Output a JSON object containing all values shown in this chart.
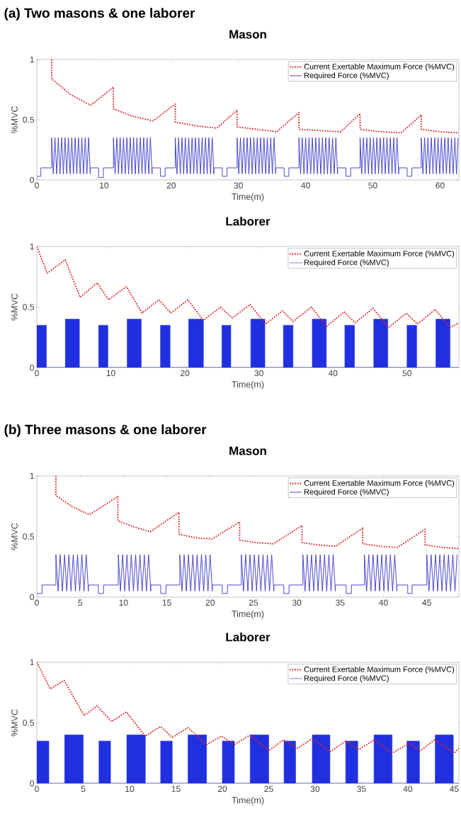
{
  "chart_data": [
    {
      "type": "line",
      "title": "Mason",
      "xlabel": "Time(m)",
      "ylabel": "%MVC",
      "annotations": [
        "(a) Two masons & one laborer"
      ],
      "xlim": [
        0,
        62.8
      ],
      "ylim": [
        0,
        1
      ],
      "xticks": [
        0,
        10,
        20,
        30,
        40,
        50,
        60
      ],
      "yticks": [
        0,
        0.5,
        1
      ],
      "legend": "top right",
      "series": [
        {
          "name": "Current Exertable Maximum Force (%MVC)",
          "color": "#e02020",
          "line_style": "dotted",
          "x": [
            2.2,
            2.2,
            5.0,
            8.0,
            11.4,
            11.4,
            14.2,
            17.3,
            20.6,
            20.6,
            23.6,
            26.8,
            29.8,
            29.8,
            32.7,
            35.7,
            39.0,
            39.0,
            42.1,
            45.2,
            48.1,
            48.1,
            51.1,
            54.2,
            57.2,
            57.2,
            60.0,
            62.8
          ],
          "values": [
            1,
            0.84,
            0.71,
            0.62,
            0.77,
            0.59,
            0.53,
            0.49,
            0.63,
            0.48,
            0.45,
            0.43,
            0.58,
            0.44,
            0.42,
            0.4,
            0.56,
            0.42,
            0.41,
            0.4,
            0.55,
            0.42,
            0.4,
            0.39,
            0.54,
            0.42,
            0.4,
            0.39
          ]
        },
        {
          "name": "Required Force (%MVC)",
          "color": "#3535cc",
          "line_style": "solid",
          "x": [
            0,
            0.6,
            0.6,
            2.2,
            2.2,
            2.45,
            2.7,
            2.95,
            3.2,
            3.45,
            3.7,
            3.95,
            4.2,
            4.45,
            4.7,
            4.95,
            5.2,
            5.45,
            5.7,
            5.95,
            6.2,
            6.45,
            6.7,
            6.95,
            7.2,
            7.45,
            7.7,
            7.95,
            7.95,
            9.2,
            9.2,
            9.9,
            9.9,
            11.4,
            11.4,
            11.65,
            11.9,
            12.15,
            12.4,
            12.65,
            12.9,
            13.15,
            13.4,
            13.65,
            13.9,
            14.15,
            14.4,
            14.65,
            14.9,
            15.15,
            15.4,
            15.65,
            15.9,
            16.15,
            16.4,
            16.65,
            16.9,
            17.15,
            17.15,
            18.4,
            18.4,
            19.1,
            19.1,
            20.6,
            20.6,
            20.85,
            21.1,
            21.35,
            21.6,
            21.85,
            22.1,
            22.35,
            22.6,
            22.85,
            23.1,
            23.35,
            23.6,
            23.85,
            24.1,
            24.35,
            24.6,
            24.85,
            25.1,
            25.35,
            25.6,
            25.85,
            26.1,
            26.35,
            26.35,
            27.6,
            27.6,
            28.3,
            28.3,
            29.8,
            29.8,
            30.05,
            30.3,
            30.55,
            30.8,
            31.05,
            31.3,
            31.55,
            31.8,
            32.05,
            32.3,
            32.55,
            32.8,
            33.05,
            33.3,
            33.55,
            33.8,
            34.05,
            34.3,
            34.55,
            34.8,
            35.05,
            35.3,
            35.55,
            35.55,
            36.8,
            36.8,
            37.5,
            37.5,
            39.0,
            39.0,
            39.25,
            39.5,
            39.75,
            40.0,
            40.25,
            40.5,
            40.75,
            41.0,
            41.25,
            41.5,
            41.75,
            42.0,
            42.25,
            42.5,
            42.75,
            43.0,
            43.25,
            43.5,
            43.75,
            44.0,
            44.25,
            44.5,
            44.75,
            44.75,
            46.0,
            46.0,
            46.7,
            46.7,
            48.1,
            48.1,
            48.35,
            48.6,
            48.85,
            49.1,
            49.35,
            49.6,
            49.85,
            50.1,
            50.35,
            50.6,
            50.85,
            51.1,
            51.35,
            51.6,
            51.85,
            52.1,
            52.35,
            52.6,
            52.85,
            53.1,
            53.35,
            53.6,
            53.85,
            53.85,
            55.1,
            55.1,
            55.8,
            55.8,
            57.2,
            57.2,
            57.45,
            57.7,
            57.95,
            58.2,
            58.45,
            58.7,
            58.95,
            59.2,
            59.45,
            59.7,
            59.95,
            60.2,
            60.45,
            60.7,
            60.95,
            61.2,
            61.45,
            61.7,
            61.95,
            62.2,
            62.45,
            62.7
          ],
          "values": [
            0.03,
            0.03,
            0.1,
            0.1,
            0.35,
            0.05,
            0.35,
            0.05,
            0.35,
            0.05,
            0.35,
            0.05,
            0.35,
            0.05,
            0.35,
            0.05,
            0.35,
            0.05,
            0.35,
            0.05,
            0.35,
            0.05,
            0.35,
            0.05,
            0.35,
            0.05,
            0.35,
            0.05,
            0.1,
            0.1,
            0.02,
            0.02,
            0.1,
            0.1,
            0.35,
            0.05,
            0.35,
            0.05,
            0.35,
            0.05,
            0.35,
            0.05,
            0.35,
            0.05,
            0.35,
            0.05,
            0.35,
            0.05,
            0.35,
            0.05,
            0.35,
            0.05,
            0.35,
            0.05,
            0.35,
            0.05,
            0.35,
            0.05,
            0.1,
            0.1,
            0.03,
            0.03,
            0.1,
            0.1,
            0.35,
            0.05,
            0.35,
            0.05,
            0.35,
            0.05,
            0.35,
            0.05,
            0.35,
            0.05,
            0.35,
            0.05,
            0.35,
            0.05,
            0.35,
            0.05,
            0.35,
            0.05,
            0.35,
            0.05,
            0.35,
            0.05,
            0.35,
            0.05,
            0.1,
            0.1,
            0.03,
            0.03,
            0.1,
            0.1,
            0.35,
            0.05,
            0.35,
            0.05,
            0.35,
            0.05,
            0.35,
            0.05,
            0.35,
            0.05,
            0.35,
            0.05,
            0.35,
            0.05,
            0.35,
            0.05,
            0.35,
            0.05,
            0.35,
            0.05,
            0.35,
            0.05,
            0.35,
            0.05,
            0.1,
            0.1,
            0.03,
            0.03,
            0.1,
            0.1,
            0.35,
            0.05,
            0.35,
            0.05,
            0.35,
            0.05,
            0.35,
            0.05,
            0.35,
            0.05,
            0.35,
            0.05,
            0.35,
            0.05,
            0.35,
            0.05,
            0.35,
            0.05,
            0.35,
            0.05,
            0.35,
            0.05,
            0.35,
            0.05,
            0.1,
            0.1,
            0.03,
            0.03,
            0.1,
            0.1,
            0.35,
            0.05,
            0.35,
            0.05,
            0.35,
            0.05,
            0.35,
            0.05,
            0.35,
            0.05,
            0.35,
            0.05,
            0.35,
            0.05,
            0.35,
            0.05,
            0.35,
            0.05,
            0.35,
            0.05,
            0.35,
            0.05,
            0.35,
            0.05,
            0.1,
            0.1,
            0.03,
            0.03,
            0.1,
            0.1,
            0.35,
            0.05,
            0.35,
            0.05,
            0.35,
            0.05,
            0.35,
            0.05,
            0.35,
            0.05,
            0.35,
            0.05,
            0.35,
            0.05,
            0.35,
            0.05,
            0.35,
            0.05,
            0.35,
            0.05,
            0.35,
            0.05,
            0.35
          ]
        }
      ]
    },
    {
      "type": "line",
      "title": "Laborer",
      "xlabel": "Time(m)",
      "ylabel": "%MVC",
      "xlim": [
        0,
        57
      ],
      "ylim": [
        0,
        1
      ],
      "xticks": [
        0,
        10,
        20,
        30,
        40,
        50
      ],
      "yticks": [
        0,
        0.5,
        1
      ],
      "legend": "top right",
      "series": [
        {
          "name": "Current Exertable Maximum Force (%MVC)",
          "color": "#e02020",
          "line_style": "dotted",
          "x": [
            0,
            1.4,
            3.85,
            5.85,
            8.15,
            9.7,
            12.1,
            14.2,
            16.5,
            18.1,
            20.4,
            22.5,
            24.8,
            26.4,
            28.8,
            30.9,
            33.2,
            34.6,
            37.1,
            39.1,
            41.5,
            43.0,
            45.4,
            47.5,
            49.9,
            51.4,
            53.8,
            55.8,
            57.0
          ],
          "values": [
            1,
            0.78,
            0.89,
            0.58,
            0.7,
            0.56,
            0.67,
            0.45,
            0.56,
            0.45,
            0.56,
            0.39,
            0.5,
            0.41,
            0.52,
            0.36,
            0.47,
            0.38,
            0.5,
            0.34,
            0.46,
            0.37,
            0.49,
            0.33,
            0.45,
            0.36,
            0.48,
            0.33,
            0.37
          ]
        },
        {
          "name": "Required Force (%MVC)",
          "color": "#2030e0",
          "type": "area",
          "x": [
            0,
            0,
            1.3,
            1.3,
            3.85,
            3.85,
            5.75,
            5.75,
            8.35,
            8.35,
            9.6,
            9.6,
            12.2,
            12.2,
            14.1,
            14.1,
            16.7,
            16.7,
            18.0,
            18.0,
            20.5,
            20.5,
            22.5,
            22.5,
            25.0,
            25.0,
            26.2,
            26.2,
            28.9,
            28.9,
            30.8,
            30.8,
            33.3,
            33.3,
            34.6,
            34.6,
            37.2,
            37.2,
            39.1,
            39.1,
            41.6,
            41.6,
            42.9,
            42.9,
            45.5,
            45.5,
            47.4,
            47.4,
            50.0,
            50.0,
            51.3,
            51.3,
            53.9,
            53.9,
            55.8,
            55.8,
            57.0
          ],
          "values": [
            0,
            0.35,
            0.35,
            0,
            0,
            0.4,
            0.4,
            0,
            0,
            0.35,
            0.35,
            0,
            0,
            0.4,
            0.4,
            0,
            0,
            0.35,
            0.35,
            0,
            0,
            0.4,
            0.4,
            0,
            0,
            0.35,
            0.35,
            0,
            0,
            0.4,
            0.4,
            0,
            0,
            0.35,
            0.35,
            0,
            0,
            0.4,
            0.4,
            0,
            0,
            0.35,
            0.35,
            0,
            0,
            0.4,
            0.4,
            0,
            0,
            0.35,
            0.35,
            0,
            0,
            0.4,
            0.4,
            0,
            0
          ]
        }
      ]
    },
    {
      "type": "line",
      "title": "Mason",
      "xlabel": "Time(m)",
      "ylabel": "%MVC",
      "annotations": [
        "(b) Three masons & one laborer"
      ],
      "xlim": [
        0,
        48.7
      ],
      "ylim": [
        0,
        1
      ],
      "xticks": [
        0,
        5,
        10,
        15,
        20,
        25,
        30,
        35,
        40,
        45
      ],
      "yticks": [
        0,
        0.5,
        1
      ],
      "legend": "top right",
      "series": [
        {
          "name": "Current Exertable Maximum Force (%MVC)",
          "color": "#e02020",
          "line_style": "dotted",
          "x": [
            2.2,
            2.2,
            4.0,
            6.05,
            9.35,
            9.35,
            11.2,
            13.1,
            16.4,
            16.4,
            18.3,
            20.2,
            23.4,
            23.4,
            25.3,
            27.3,
            30.6,
            30.6,
            32.5,
            34.5,
            37.6,
            37.6,
            39.6,
            41.6,
            44.8,
            44.8,
            46.8,
            48.7
          ],
          "values": [
            1,
            0.84,
            0.75,
            0.68,
            0.83,
            0.63,
            0.58,
            0.54,
            0.7,
            0.52,
            0.49,
            0.48,
            0.62,
            0.47,
            0.45,
            0.44,
            0.59,
            0.45,
            0.43,
            0.42,
            0.57,
            0.44,
            0.42,
            0.41,
            0.56,
            0.43,
            0.41,
            0.4
          ]
        },
        {
          "name": "Required Force (%MVC)",
          "color": "#3535cc",
          "line_style": "solid",
          "x": [
            0,
            0.6,
            0.6,
            2.2,
            2.2,
            2.45,
            2.7,
            2.95,
            3.2,
            3.45,
            3.7,
            3.95,
            4.2,
            4.45,
            4.7,
            4.95,
            5.2,
            5.45,
            5.7,
            5.95,
            5.95,
            7.1,
            7.1,
            7.7,
            7.7,
            9.4,
            9.4,
            9.65,
            9.9,
            10.15,
            10.4,
            10.65,
            10.9,
            11.15,
            11.4,
            11.65,
            11.9,
            12.15,
            12.4,
            12.65,
            12.9,
            13.15,
            13.15,
            14.3,
            14.3,
            14.9,
            14.9,
            16.5,
            16.5,
            16.75,
            17.0,
            17.25,
            17.5,
            17.75,
            18.0,
            18.25,
            18.5,
            18.75,
            19.0,
            19.25,
            19.5,
            19.75,
            20.0,
            20.25,
            20.25,
            21.4,
            21.4,
            22.0,
            22.0,
            23.6,
            23.6,
            23.85,
            24.1,
            24.35,
            24.6,
            24.85,
            25.1,
            25.35,
            25.6,
            25.85,
            26.1,
            26.35,
            26.6,
            26.85,
            27.1,
            27.35,
            27.35,
            28.5,
            28.5,
            29.1,
            29.1,
            30.7,
            30.7,
            30.95,
            31.2,
            31.45,
            31.7,
            31.95,
            32.2,
            32.45,
            32.7,
            32.95,
            33.2,
            33.45,
            33.7,
            33.95,
            34.2,
            34.45,
            34.45,
            35.7,
            35.7,
            36.3,
            36.3,
            37.8,
            37.8,
            38.05,
            38.3,
            38.55,
            38.8,
            39.05,
            39.3,
            39.55,
            39.8,
            40.05,
            40.3,
            40.55,
            40.8,
            41.05,
            41.3,
            41.55,
            41.55,
            42.8,
            42.8,
            43.3,
            43.3,
            45.0,
            45.0,
            45.25,
            45.5,
            45.75,
            46.0,
            46.25,
            46.5,
            46.75,
            47.0,
            47.25,
            47.5,
            47.75,
            48.0,
            48.25,
            48.5
          ],
          "values": [
            0.03,
            0.03,
            0.1,
            0.1,
            0.35,
            0.05,
            0.35,
            0.05,
            0.35,
            0.05,
            0.35,
            0.05,
            0.35,
            0.05,
            0.35,
            0.05,
            0.35,
            0.05,
            0.35,
            0.05,
            0.1,
            0.1,
            0.03,
            0.03,
            0.1,
            0.1,
            0.35,
            0.05,
            0.35,
            0.05,
            0.35,
            0.05,
            0.35,
            0.05,
            0.35,
            0.05,
            0.35,
            0.05,
            0.35,
            0.05,
            0.35,
            0.05,
            0.1,
            0.1,
            0.03,
            0.03,
            0.1,
            0.1,
            0.35,
            0.05,
            0.35,
            0.05,
            0.35,
            0.05,
            0.35,
            0.05,
            0.35,
            0.05,
            0.35,
            0.05,
            0.35,
            0.05,
            0.35,
            0.05,
            0.1,
            0.1,
            0.03,
            0.03,
            0.1,
            0.1,
            0.35,
            0.05,
            0.35,
            0.05,
            0.35,
            0.05,
            0.35,
            0.05,
            0.35,
            0.05,
            0.35,
            0.05,
            0.35,
            0.05,
            0.35,
            0.05,
            0.1,
            0.1,
            0.03,
            0.03,
            0.1,
            0.1,
            0.35,
            0.05,
            0.35,
            0.05,
            0.35,
            0.05,
            0.35,
            0.05,
            0.35,
            0.05,
            0.35,
            0.05,
            0.35,
            0.05,
            0.35,
            0.05,
            0.1,
            0.1,
            0.03,
            0.03,
            0.1,
            0.1,
            0.35,
            0.05,
            0.35,
            0.05,
            0.35,
            0.05,
            0.35,
            0.05,
            0.35,
            0.05,
            0.35,
            0.05,
            0.35,
            0.05,
            0.35,
            0.05,
            0.1,
            0.1,
            0.03,
            0.03,
            0.1,
            0.1,
            0.35,
            0.05,
            0.35,
            0.05,
            0.35,
            0.05,
            0.35,
            0.05,
            0.35,
            0.05,
            0.35,
            0.05,
            0.35,
            0.05,
            0.35
          ]
        }
      ]
    },
    {
      "type": "line",
      "title": "Laborer",
      "xlabel": "Time(m)",
      "ylabel": "%MVC",
      "xlim": [
        0,
        45.5
      ],
      "ylim": [
        0,
        1
      ],
      "xticks": [
        0,
        5,
        10,
        15,
        20,
        25,
        30,
        35,
        40,
        45
      ],
      "yticks": [
        0,
        0.5,
        1
      ],
      "legend": "top right",
      "series": [
        {
          "name": "Current Exertable Maximum Force (%MVC)",
          "color": "#e02020",
          "line_style": "dotted",
          "x": [
            0,
            1.45,
            2.95,
            5.1,
            6.5,
            8.05,
            9.65,
            11.7,
            13.35,
            14.6,
            16.3,
            18.3,
            19.9,
            21.3,
            23.0,
            25.0,
            26.6,
            28.1,
            29.7,
            31.6,
            33.3,
            34.7,
            36.4,
            38.3,
            40.1,
            41.35,
            42.9,
            45.0,
            45.5
          ],
          "values": [
            1,
            0.78,
            0.85,
            0.56,
            0.64,
            0.51,
            0.59,
            0.39,
            0.47,
            0.38,
            0.46,
            0.32,
            0.39,
            0.32,
            0.4,
            0.27,
            0.36,
            0.29,
            0.37,
            0.26,
            0.35,
            0.28,
            0.36,
            0.25,
            0.33,
            0.27,
            0.36,
            0.25,
            0.29
          ]
        },
        {
          "name": "Required Force (%MVC)",
          "color": "#2030e0",
          "type": "area",
          "x": [
            0,
            0,
            1.3,
            1.3,
            3.0,
            3.0,
            5.0,
            5.0,
            6.7,
            6.7,
            7.95,
            7.95,
            9.7,
            9.7,
            11.7,
            11.7,
            13.35,
            13.35,
            14.6,
            14.6,
            16.3,
            16.3,
            18.3,
            18.3,
            20.0,
            20.0,
            21.3,
            21.3,
            23.0,
            23.0,
            25.0,
            25.0,
            26.65,
            26.65,
            27.9,
            27.9,
            29.7,
            29.7,
            31.6,
            31.6,
            33.3,
            33.3,
            34.6,
            34.6,
            36.35,
            36.35,
            38.3,
            38.3,
            39.9,
            39.9,
            41.25,
            41.25,
            42.95,
            42.95,
            44.9,
            44.9,
            45.5
          ],
          "values": [
            0,
            0.35,
            0.35,
            0,
            0,
            0.4,
            0.4,
            0,
            0,
            0.35,
            0.35,
            0,
            0,
            0.4,
            0.4,
            0,
            0,
            0.35,
            0.35,
            0,
            0,
            0.4,
            0.4,
            0,
            0,
            0.35,
            0.35,
            0,
            0,
            0.4,
            0.4,
            0,
            0,
            0.35,
            0.35,
            0,
            0,
            0.4,
            0.4,
            0,
            0,
            0.35,
            0.35,
            0,
            0,
            0.4,
            0.4,
            0,
            0,
            0.35,
            0.35,
            0,
            0,
            0.4,
            0.4,
            0,
            0
          ]
        }
      ]
    }
  ]
}
